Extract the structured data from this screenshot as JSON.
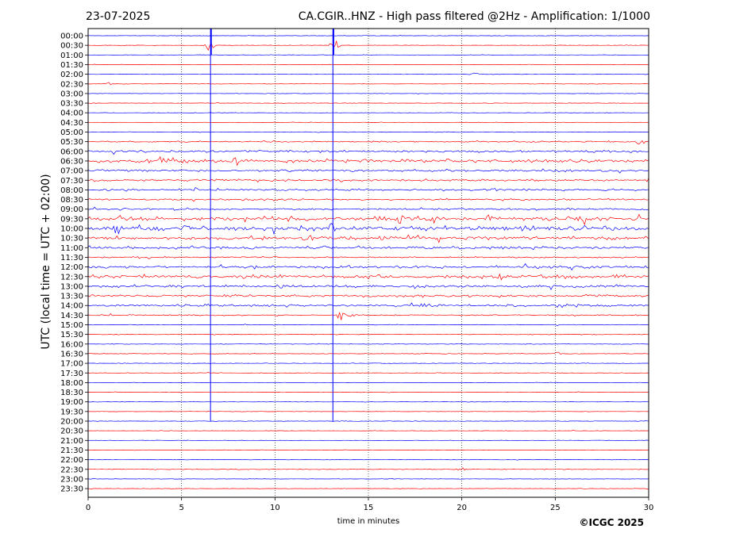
{
  "chart_data": {
    "type": "line",
    "date": "23-07-2025",
    "title": "CA.CGIR..HNZ - High pass filtered @2Hz - Amplification: 1/1000",
    "xlabel": "time in minutes",
    "ylabel": "UTC (local time = UTC + 02:00)",
    "copyright": "©ICGC 2025",
    "xlim": [
      0,
      30
    ],
    "x_ticks": [
      "0",
      "5",
      "10",
      "15",
      "20",
      "25",
      "30"
    ],
    "x_tick_values": [
      0,
      5,
      10,
      15,
      20,
      25,
      30
    ],
    "row_labels": [
      "00:00",
      "00:30",
      "01:00",
      "01:30",
      "02:00",
      "02:30",
      "03:00",
      "03:30",
      "04:00",
      "04:30",
      "05:00",
      "05:30",
      "06:00",
      "06:30",
      "07:00",
      "07:30",
      "08:00",
      "08:30",
      "09:00",
      "09:30",
      "10:00",
      "10:30",
      "11:00",
      "11:30",
      "12:00",
      "12:30",
      "13:00",
      "13:30",
      "14:00",
      "14:30",
      "15:00",
      "15:30",
      "16:00",
      "16:30",
      "17:00",
      "17:30",
      "18:00",
      "18:30",
      "19:00",
      "19:30",
      "20:00",
      "20:30",
      "21:00",
      "21:30",
      "22:00",
      "22:30",
      "23:00",
      "23:30"
    ],
    "trace_colors": [
      "#0000ff",
      "#ff0000"
    ],
    "row_noise_level": [
      0.4,
      0.4,
      0.4,
      0.4,
      0.4,
      0.4,
      0.4,
      0.4,
      0.4,
      0.4,
      0.6,
      1.2,
      2.0,
      3.0,
      2.0,
      1.8,
      1.8,
      1.6,
      1.6,
      3.5,
      4.0,
      3.0,
      2.4,
      1.2,
      2.2,
      2.6,
      2.4,
      2.0,
      2.0,
      1.0,
      0.5,
      0.5,
      0.5,
      0.6,
      0.5,
      0.5,
      0.4,
      0.4,
      0.4,
      0.4,
      0.5,
      0.4,
      0.4,
      0.4,
      0.4,
      0.5,
      0.4,
      0.4
    ],
    "events": [
      {
        "row": 1,
        "minute": 6.5,
        "amplitude": 12
      },
      {
        "row": 1,
        "minute": 13.2,
        "amplitude": 12
      },
      {
        "row": 4,
        "minute": 20.6,
        "amplitude": 4
      },
      {
        "row": 5,
        "minute": 1.0,
        "amplitude": 5
      },
      {
        "row": 11,
        "minute": 29.5,
        "amplitude": 7
      },
      {
        "row": 13,
        "minute": 4.0,
        "amplitude": 8
      },
      {
        "row": 13,
        "minute": 7.8,
        "amplitude": 8
      },
      {
        "row": 18,
        "minute": 23.6,
        "amplitude": 6
      },
      {
        "row": 19,
        "minute": 15.8,
        "amplitude": 6
      },
      {
        "row": 19,
        "minute": 16.7,
        "amplitude": 7
      },
      {
        "row": 19,
        "minute": 21.5,
        "amplitude": 7
      },
      {
        "row": 19,
        "minute": 26.5,
        "amplitude": 9
      },
      {
        "row": 19,
        "minute": 29.4,
        "amplitude": 9
      },
      {
        "row": 20,
        "minute": 1.6,
        "amplitude": 9
      },
      {
        "row": 20,
        "minute": 5.2,
        "amplitude": 9
      },
      {
        "row": 20,
        "minute": 13.0,
        "amplitude": 7
      },
      {
        "row": 21,
        "minute": 11.8,
        "amplitude": 6
      },
      {
        "row": 25,
        "minute": 22.0,
        "amplitude": 6
      },
      {
        "row": 26,
        "minute": 10.2,
        "amplitude": 6
      },
      {
        "row": 27,
        "minute": 21.9,
        "amplitude": 5
      },
      {
        "row": 28,
        "minute": 18.0,
        "amplitude": 5
      },
      {
        "row": 29,
        "minute": 13.5,
        "amplitude": 10
      },
      {
        "row": 29,
        "minute": 14.1,
        "amplitude": 10
      },
      {
        "row": 33,
        "minute": 25.2,
        "amplitude": 4
      },
      {
        "row": 45,
        "minute": 20.0,
        "amplitude": 4
      }
    ],
    "spikes": [
      {
        "minute": 6.55,
        "from_row": 0,
        "to_row": 40
      },
      {
        "minute": 13.1,
        "from_row": 0,
        "to_row": 40
      }
    ],
    "grid": true
  }
}
